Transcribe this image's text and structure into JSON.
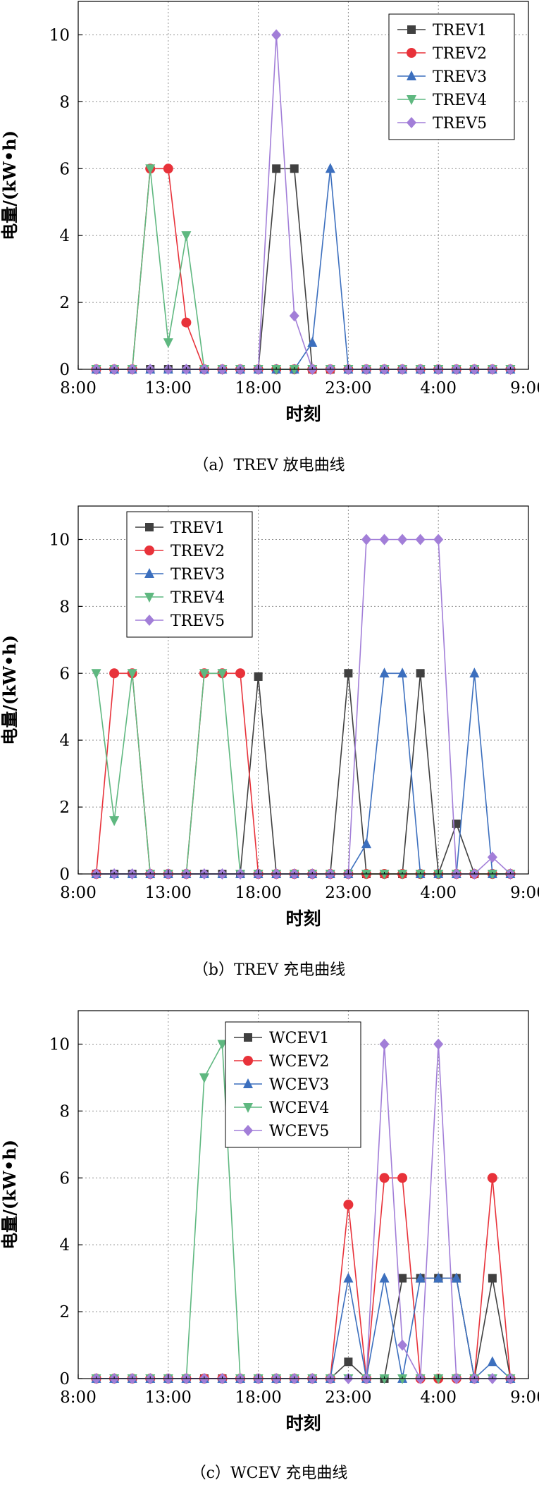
{
  "colors": {
    "TREV1": "#404040",
    "TREV2": "#e8323a",
    "TREV3": "#3c6fbe",
    "TREV4": "#5fb880",
    "TREV5": "#a27ed8",
    "WCEV1": "#404040",
    "WCEV2": "#e8323a",
    "WCEV3": "#3c6fbe",
    "WCEV4": "#5fb880",
    "WCEV5": "#a27ed8",
    "grid": "#909090",
    "axis": "#000000"
  },
  "chart_data": [
    {
      "type": "line",
      "caption": "（a）TREV 放电曲线",
      "xlabel": "时刻",
      "ylabel": "电量/(kW•h)",
      "xlim": [
        0,
        25
      ],
      "ylim": [
        0,
        11
      ],
      "x_ticks": [
        {
          "x": 0,
          "label": "8:00"
        },
        {
          "x": 5,
          "label": "13:00"
        },
        {
          "x": 10,
          "label": "18:00"
        },
        {
          "x": 15,
          "label": "23:00"
        },
        {
          "x": 20,
          "label": "4:00"
        },
        {
          "x": 25,
          "label": "9:00"
        }
      ],
      "y_ticks": [
        0,
        2,
        4,
        6,
        8,
        10
      ],
      "grid": true,
      "legend_position": "top-right",
      "x": [
        1,
        2,
        3,
        4,
        5,
        6,
        7,
        8,
        9,
        10,
        11,
        12,
        13,
        14,
        15,
        16,
        17,
        18,
        19,
        20,
        21,
        22,
        23,
        24
      ],
      "series": [
        {
          "name": "TREV1",
          "marker": "square",
          "values": [
            0,
            0,
            0,
            0,
            0,
            0,
            0,
            0,
            0,
            0,
            6,
            6,
            0,
            0,
            0,
            0,
            0,
            0,
            0,
            0,
            0,
            0,
            0,
            0
          ]
        },
        {
          "name": "TREV2",
          "marker": "circle",
          "values": [
            0,
            0,
            0,
            6,
            6,
            1.4,
            0,
            0,
            0,
            0,
            0,
            0,
            0,
            0,
            0,
            0,
            0,
            0,
            0,
            0,
            0,
            0,
            0,
            0
          ]
        },
        {
          "name": "TREV3",
          "marker": "triangle-up",
          "values": [
            0,
            0,
            0,
            0,
            0,
            0,
            0,
            0,
            0,
            0,
            0,
            0,
            0.8,
            6,
            0,
            0,
            0,
            0,
            0,
            0,
            0,
            0,
            0,
            0
          ]
        },
        {
          "name": "TREV4",
          "marker": "triangle-down",
          "values": [
            0,
            0,
            0,
            6,
            0.8,
            4,
            0,
            0,
            0,
            0,
            0,
            0,
            0,
            0,
            0,
            0,
            0,
            0,
            0,
            0,
            0,
            0,
            0,
            0
          ]
        },
        {
          "name": "TREV5",
          "marker": "diamond",
          "values": [
            0,
            0,
            0,
            0,
            0,
            0,
            0,
            0,
            0,
            0,
            10,
            1.6,
            0,
            0,
            0,
            0,
            0,
            0,
            0,
            0,
            0,
            0,
            0,
            0
          ]
        }
      ]
    },
    {
      "type": "line",
      "caption": "（b）TREV 充电曲线",
      "xlabel": "时刻",
      "ylabel": "电量/(kW•h)",
      "xlim": [
        0,
        25
      ],
      "ylim": [
        0,
        11
      ],
      "x_ticks": [
        {
          "x": 0,
          "label": "8:00"
        },
        {
          "x": 5,
          "label": "13:00"
        },
        {
          "x": 10,
          "label": "18:00"
        },
        {
          "x": 15,
          "label": "23:00"
        },
        {
          "x": 20,
          "label": "4:00"
        },
        {
          "x": 25,
          "label": "9:00"
        }
      ],
      "y_ticks": [
        0,
        2,
        4,
        6,
        8,
        10
      ],
      "grid": true,
      "legend_position": "top-left",
      "x": [
        1,
        2,
        3,
        4,
        5,
        6,
        7,
        8,
        9,
        10,
        11,
        12,
        13,
        14,
        15,
        16,
        17,
        18,
        19,
        20,
        21,
        22,
        23,
        24
      ],
      "series": [
        {
          "name": "TREV1",
          "marker": "square",
          "values": [
            0,
            0,
            0,
            0,
            0,
            0,
            0,
            0,
            0,
            5.9,
            0,
            0,
            0,
            0,
            6,
            0,
            0,
            0,
            6,
            0,
            1.5,
            0,
            0,
            0
          ]
        },
        {
          "name": "TREV2",
          "marker": "circle",
          "values": [
            0,
            6,
            6,
            0,
            0,
            0,
            6,
            6,
            6,
            0,
            0,
            0,
            0,
            0,
            0,
            0,
            0,
            0,
            0,
            0,
            0,
            0,
            0,
            0
          ]
        },
        {
          "name": "TREV3",
          "marker": "triangle-up",
          "values": [
            0,
            0,
            0,
            0,
            0,
            0,
            0,
            0,
            0,
            0,
            0,
            0,
            0,
            0,
            0,
            0.9,
            6,
            6,
            0,
            0,
            0,
            6,
            0,
            0
          ]
        },
        {
          "name": "TREV4",
          "marker": "triangle-down",
          "values": [
            6,
            1.6,
            6,
            0,
            0,
            0,
            6,
            6,
            0,
            0,
            0,
            0,
            0,
            0,
            0,
            0,
            0,
            0,
            0,
            0,
            0,
            0,
            0,
            0
          ]
        },
        {
          "name": "TREV5",
          "marker": "diamond",
          "values": [
            0,
            0,
            0,
            0,
            0,
            0,
            0,
            0,
            0,
            0,
            0,
            0,
            0,
            0,
            0,
            10,
            10,
            10,
            10,
            10,
            0,
            0,
            0.5,
            0
          ]
        }
      ]
    },
    {
      "type": "line",
      "caption": "（c）WCEV 充电曲线",
      "xlabel": "时刻",
      "ylabel": "电量/(kW•h)",
      "xlim": [
        0,
        25
      ],
      "ylim": [
        0,
        11
      ],
      "x_ticks": [
        {
          "x": 0,
          "label": "8:00"
        },
        {
          "x": 5,
          "label": "13:00"
        },
        {
          "x": 10,
          "label": "18:00"
        },
        {
          "x": 15,
          "label": "23:00"
        },
        {
          "x": 20,
          "label": "4:00"
        },
        {
          "x": 25,
          "label": "9:00"
        }
      ],
      "y_ticks": [
        0,
        2,
        4,
        6,
        8,
        10
      ],
      "grid": true,
      "legend_position": "top-center",
      "x": [
        1,
        2,
        3,
        4,
        5,
        6,
        7,
        8,
        9,
        10,
        11,
        12,
        13,
        14,
        15,
        16,
        17,
        18,
        19,
        20,
        21,
        22,
        23,
        24
      ],
      "series": [
        {
          "name": "WCEV1",
          "marker": "square",
          "values": [
            0,
            0,
            0,
            0,
            0,
            0,
            0,
            0,
            0,
            0,
            0,
            0,
            0,
            0,
            0.5,
            0,
            0,
            3,
            3,
            3,
            3,
            0,
            3,
            0
          ]
        },
        {
          "name": "WCEV2",
          "marker": "circle",
          "values": [
            0,
            0,
            0,
            0,
            0,
            0,
            0,
            0,
            0,
            0,
            0,
            0,
            0,
            0,
            5.2,
            0,
            6,
            6,
            0,
            0,
            0,
            0,
            6,
            0
          ]
        },
        {
          "name": "WCEV3",
          "marker": "triangle-up",
          "values": [
            0,
            0,
            0,
            0,
            0,
            0,
            0,
            0,
            0,
            0,
            0,
            0,
            0,
            0,
            3,
            0,
            3,
            0,
            3,
            3,
            3,
            0,
            0.5,
            0
          ]
        },
        {
          "name": "WCEV4",
          "marker": "triangle-down",
          "values": [
            0,
            0,
            0,
            0,
            0,
            0,
            9,
            10,
            0,
            0,
            0,
            0,
            0,
            0,
            0,
            0,
            0,
            0,
            0,
            0,
            0,
            0,
            0,
            0
          ]
        },
        {
          "name": "WCEV5",
          "marker": "diamond",
          "values": [
            0,
            0,
            0,
            0,
            0,
            0,
            0,
            0,
            0,
            0,
            0,
            0,
            0,
            0,
            0,
            0,
            10,
            1,
            0,
            10,
            0,
            0,
            0,
            0
          ]
        }
      ]
    }
  ]
}
